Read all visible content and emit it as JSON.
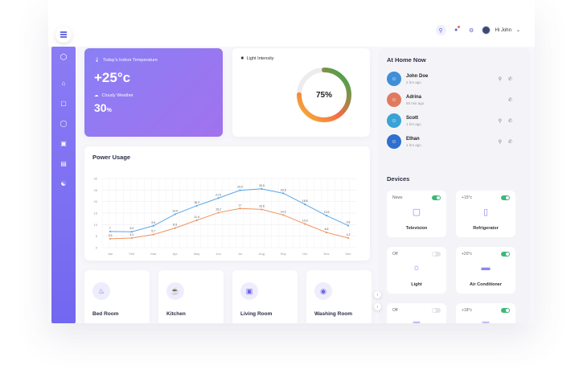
{
  "header": {
    "user_greeting": "Hi John"
  },
  "temperature": {
    "indoor_label": "Today's Indoor Temperature",
    "indoor_value": "+25°c",
    "weather_label": "Cloudy Weather",
    "weather_value": "30",
    "weather_unit": "%"
  },
  "light": {
    "label": "Light Intensity",
    "value": "75%",
    "percent": 75
  },
  "home": {
    "title": "At Home Now",
    "people": [
      {
        "name": "John Doe",
        "time": "2 hrs ago",
        "color": "#3e8fd8"
      },
      {
        "name": "Adrina",
        "time": "50 min ago",
        "color": "#e07a5f"
      },
      {
        "name": "Scott",
        "time": "1 hrs ago",
        "color": "#3aa3d6"
      },
      {
        "name": "Ethan",
        "time": "1 hrs ago",
        "color": "#2f6fd0"
      }
    ]
  },
  "devices": {
    "title": "Devices",
    "items": [
      {
        "status": "News",
        "name": "Television",
        "on": true,
        "icon": "tv-icon"
      },
      {
        "status": "+15°c",
        "name": "Refrigerator",
        "on": true,
        "icon": "fridge-icon"
      },
      {
        "status": "Off",
        "name": "Light",
        "on": false,
        "icon": "bulb-icon"
      },
      {
        "status": "+20°c",
        "name": "Air Conditioner",
        "on": true,
        "icon": "ac-icon"
      },
      {
        "status": "Off",
        "name": "",
        "on": false,
        "icon": "device-icon"
      },
      {
        "status": "+18°c",
        "name": "",
        "on": true,
        "icon": "device-icon"
      }
    ]
  },
  "rooms": [
    {
      "name": "Bed Room",
      "icon": "bed-icon"
    },
    {
      "name": "Kitchen",
      "icon": "kitchen-icon"
    },
    {
      "name": "Living Room",
      "icon": "sofa-icon"
    },
    {
      "name": "Washing Room",
      "icon": "washer-icon"
    }
  ],
  "chart_data": {
    "type": "line",
    "title": "Power Usage",
    "categories": [
      "Jan",
      "Feb",
      "Mar",
      "Apr",
      "May",
      "Jun",
      "Jul",
      "Aug",
      "Sep",
      "Oct",
      "Nov",
      "Dec"
    ],
    "yticks": [
      0,
      5,
      10,
      15,
      20,
      25,
      30
    ],
    "ylim": [
      0,
      30
    ],
    "grid": true,
    "series": [
      {
        "values": [
          7,
          6.9,
          9.5,
          14.5,
          18.2,
          21.5,
          24.9,
          25.5,
          23.6,
          18.8,
          13.9,
          9.6
        ],
        "color": "#5aa6e8"
      },
      {
        "values": [
          3.9,
          4.2,
          5.7,
          8.5,
          11.9,
          15.2,
          17,
          16.6,
          14.2,
          10.3,
          6.6,
          4.2
        ],
        "color": "#f0935a"
      }
    ]
  }
}
